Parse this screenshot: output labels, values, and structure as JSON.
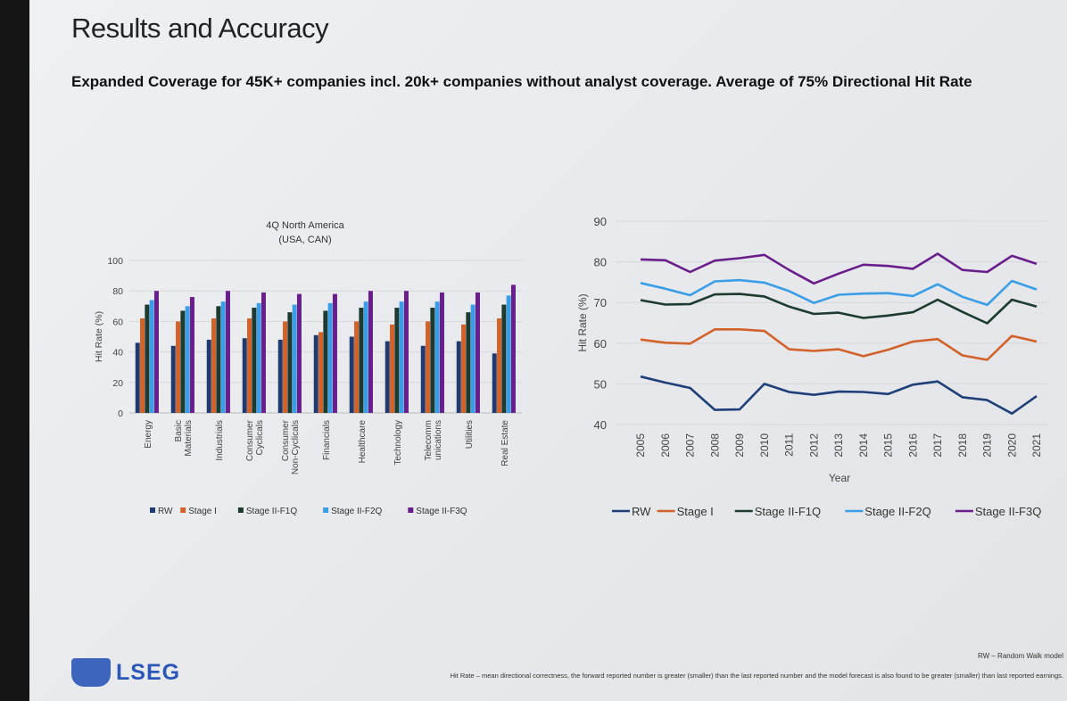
{
  "title": "Results and Accuracy",
  "subtitle": "Expanded Coverage for 45K+ companies incl. 20k+ companies without analyst coverage. Average of 75% Directional Hit Rate",
  "logo": {
    "text": "LSEG",
    "color": "#2b57b8"
  },
  "footer": {
    "rw_note": "RW – Random Walk model",
    "footnote": "Hit Rate – mean directional correctness, the forward reported number is greater (smaller) than the last reported number and the model forecast is also found to be greater (smaller) than last reported earnings."
  },
  "chart_data": [
    {
      "type": "bar",
      "title": "4Q North America",
      "subtitle": "(USA, CAN)",
      "ylabel": "Hit Rate (%)",
      "xlabel": "",
      "ylim": [
        0,
        100
      ],
      "yticks": [
        0,
        20,
        40,
        60,
        80,
        100
      ],
      "grid": true,
      "legend": "bottom",
      "categories": [
        "Energy",
        "Basic Materials",
        "Industrials",
        "Consumer Cyclicals",
        "Consumer Non-Cyclicals",
        "Financials",
        "Healthcare",
        "Technology",
        "Telecomm unications",
        "Utilities",
        "Real Estate"
      ],
      "category_lines": [
        [
          "Energy"
        ],
        [
          "Basic",
          "Materials"
        ],
        [
          "Industrials"
        ],
        [
          "Consumer",
          "Cyclicals"
        ],
        [
          "Consumer",
          "Non-Cyclicals"
        ],
        [
          "Financials"
        ],
        [
          "Healthcare"
        ],
        [
          "Technology"
        ],
        [
          "Telecomm",
          "unications"
        ],
        [
          "Utilities"
        ],
        [
          "Real Estate"
        ]
      ],
      "series": [
        {
          "name": "RW",
          "color": "#1f3a6e",
          "values": [
            46,
            44,
            48,
            49,
            48,
            51,
            50,
            47,
            44,
            47,
            39
          ]
        },
        {
          "name": "Stage I",
          "color": "#d2622a",
          "values": [
            62,
            60,
            62,
            62,
            60,
            53,
            60,
            58,
            60,
            58,
            62
          ]
        },
        {
          "name": "Stage II-F1Q",
          "color": "#1d3b2e",
          "values": [
            71,
            67,
            70,
            69,
            66,
            67,
            69,
            69,
            69,
            66,
            71
          ]
        },
        {
          "name": "Stage II-F2Q",
          "color": "#3a9ee6",
          "values": [
            74,
            70,
            73,
            72,
            71,
            72,
            73,
            73,
            73,
            71,
            77
          ]
        },
        {
          "name": "Stage II-F3Q",
          "color": "#6a1e8c",
          "values": [
            80,
            76,
            80,
            79,
            78,
            78,
            80,
            80,
            79,
            79,
            84
          ]
        }
      ]
    },
    {
      "type": "line",
      "title": "",
      "ylabel": "Hit Rate (%)",
      "xlabel": "Year",
      "ylim": [
        40,
        90
      ],
      "yticks": [
        40,
        50,
        60,
        70,
        80,
        90
      ],
      "grid": true,
      "legend": "bottom",
      "x": [
        "2005",
        "2006",
        "2007",
        "2008",
        "2009",
        "2010",
        "2011",
        "2012",
        "2013",
        "2014",
        "2015",
        "2016",
        "2017",
        "2018",
        "2019",
        "2020",
        "2021"
      ],
      "series": [
        {
          "name": "RW",
          "color": "#1f3f78",
          "values": [
            51.8,
            50.3,
            49.0,
            43.6,
            43.7,
            50.0,
            48.0,
            47.3,
            48.1,
            48.0,
            47.5,
            49.8,
            50.6,
            46.7,
            46.0,
            42.7,
            47.0
          ]
        },
        {
          "name": "Stage I",
          "color": "#d2622a",
          "values": [
            60.9,
            60.1,
            59.9,
            63.4,
            63.4,
            63.0,
            58.5,
            58.1,
            58.5,
            56.8,
            58.4,
            60.4,
            61.0,
            57.0,
            55.9,
            61.8,
            60.4
          ]
        },
        {
          "name": "Stage II-F1Q",
          "color": "#1d3b2e",
          "values": [
            70.6,
            69.5,
            69.6,
            72.0,
            72.1,
            71.5,
            69.0,
            67.2,
            67.5,
            66.2,
            66.8,
            67.6,
            70.7,
            67.7,
            64.9,
            70.7,
            69.0
          ]
        },
        {
          "name": "Stage II-F2Q",
          "color": "#3a9ee6",
          "values": [
            74.8,
            73.4,
            71.8,
            75.2,
            75.5,
            74.9,
            72.8,
            69.9,
            71.9,
            72.2,
            72.3,
            71.6,
            74.5,
            71.4,
            69.4,
            75.3,
            73.2
          ]
        },
        {
          "name": "Stage II-F3Q",
          "color": "#6a1e8c",
          "values": [
            80.6,
            80.4,
            77.5,
            80.3,
            80.9,
            81.7,
            78.0,
            74.7,
            77.1,
            79.3,
            79.0,
            78.3,
            82.0,
            78.0,
            77.5,
            81.5,
            79.5
          ]
        }
      ]
    }
  ]
}
